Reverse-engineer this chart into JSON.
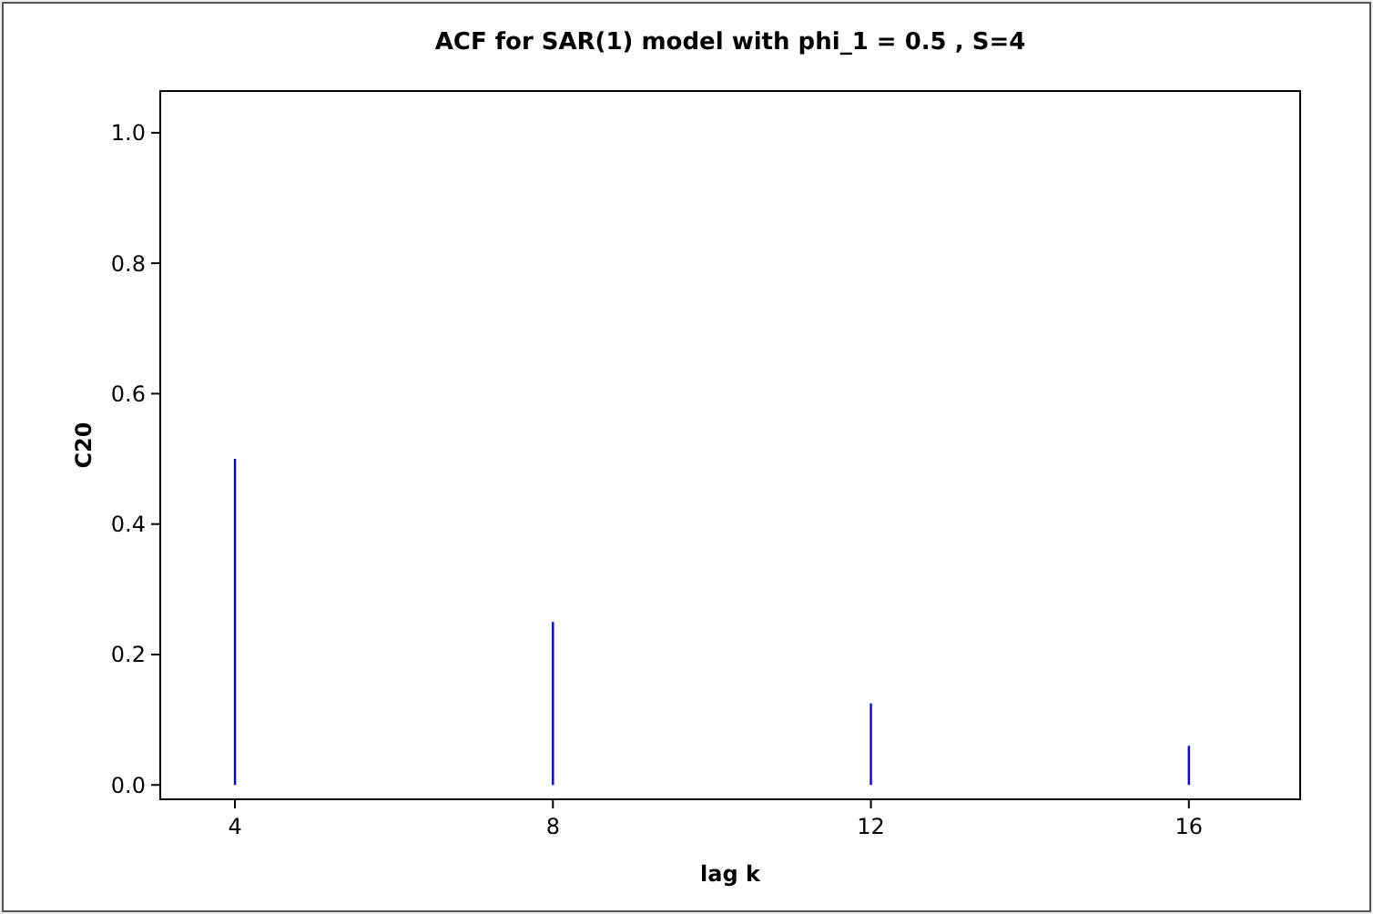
{
  "chart_data": {
    "type": "bar",
    "title": "ACF for SAR(1) model with phi_1 = 0.5 , S=4",
    "xlabel": "lag k",
    "ylabel": "C20",
    "x": [
      4,
      8,
      12,
      16
    ],
    "series": [
      {
        "color": "#0000ff",
        "values": [
          0.5,
          0.25,
          0.125,
          0.06
        ]
      }
    ],
    "xlim": [
      3.06,
      17.4
    ],
    "xticks": [
      4,
      8,
      12,
      16
    ],
    "ylim": [
      -0.022,
      1.064
    ],
    "yticks": [
      {
        "value": 0,
        "label": "0.0"
      },
      {
        "value": 0.2,
        "label": "0.2"
      },
      {
        "value": 0.4,
        "label": "0.4"
      },
      {
        "value": 0.6,
        "label": "0.6"
      },
      {
        "value": 0.8,
        "label": "0.8"
      },
      {
        "value": 1,
        "label": "1.0"
      }
    ],
    "grid": false
  }
}
